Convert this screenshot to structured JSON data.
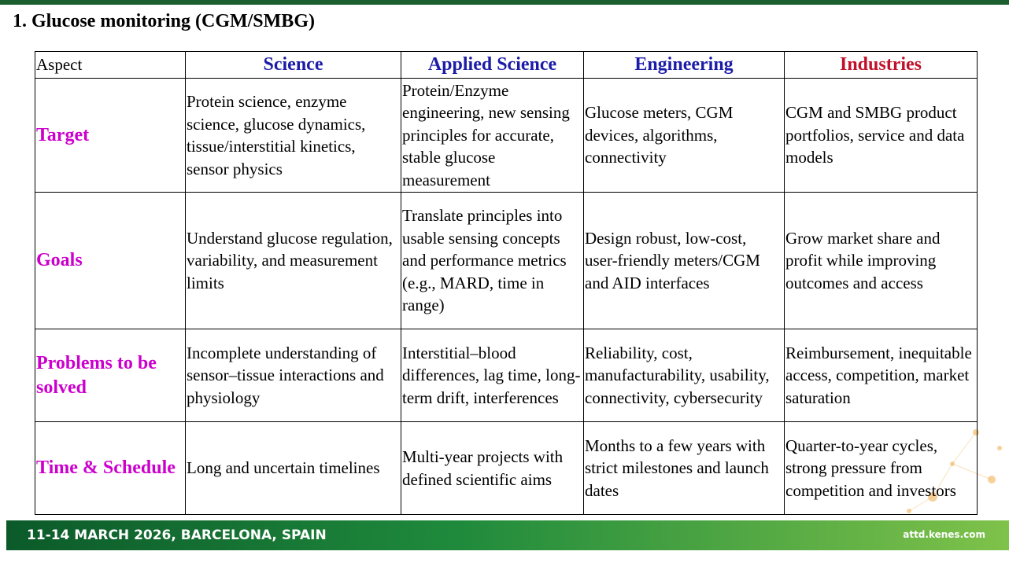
{
  "header": {
    "title": "1. Glucose monitoring (CGM/SMBG)"
  },
  "table": {
    "columns": [
      "Aspect",
      "Science",
      "Applied Science",
      "Engineering",
      "Industries"
    ],
    "rows": [
      {
        "label": "Target",
        "cells": [
          "Protein science, enzyme science, glucose dynamics, tissue/interstitial kinetics, sensor physics",
          "Protein/Enzyme engineering, new sensing principles for accurate, stable glucose measurement",
          "Glucose meters, CGM devices, algorithms, connectivity",
          "CGM and SMBG product portfolios, service and data models"
        ]
      },
      {
        "label": "Goals",
        "cells": [
          "Understand glucose regulation, variability, and measurement limits",
          "Translate principles into usable sensing concepts and performance metrics (e.g., MARD, time in range)",
          "Design robust, low-cost, user-friendly meters/CGM and AID interfaces",
          "Grow market share and profit while improving outcomes and access"
        ]
      },
      {
        "label": "Problems to be solved",
        "cells": [
          "Incomplete understanding of sensor–tissue interactions and physiology",
          "Interstitial–blood differences, lag time, long-term drift, interferences",
          "Reliability, cost, manufacturability, usability, connectivity, cybersecurity",
          "Reimbursement, inequitable access, competition, market saturation"
        ]
      },
      {
        "label": "Time & Schedule",
        "cells": [
          "Long and uncertain timelines",
          "Multi-year projects with defined scientific aims",
          "Months to a few years with strict milestones and launch dates",
          "Quarter-to-year cycles, strong pressure from competition and investors"
        ]
      }
    ]
  },
  "footer": {
    "event": "11-14 MARCH 2026, BARCELONA, SPAIN",
    "url": "attd.kenes.com"
  }
}
